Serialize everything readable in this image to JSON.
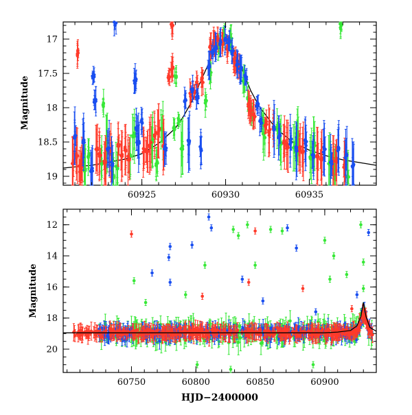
{
  "chart_data": [
    {
      "type": "scatter",
      "xlabel": "",
      "ylabel": "Magnitude",
      "xlim": [
        60920.3,
        60939.0
      ],
      "ylim": [
        19.13,
        16.75
      ],
      "y_inverted": true,
      "xticks": [
        60925,
        60930,
        60935
      ],
      "xtick_labels": [
        "60925",
        "60930",
        "60935"
      ],
      "yticks": [
        17,
        17.5,
        18,
        18.5,
        19
      ],
      "ytick_labels": [
        "17",
        "17.5",
        "18",
        "18.5",
        "19"
      ],
      "grid": false,
      "colors": {
        "red": "#ff3a2a",
        "green": "#38e838",
        "blue": "#1a4ff0",
        "model": "#000000"
      },
      "model_curve": {
        "x": [
          60920.3,
          60922,
          60924,
          60925,
          60926,
          60927,
          60927.5,
          60928,
          60928.5,
          60929,
          60929.5,
          60930,
          60930.5,
          60931,
          60931.5,
          60932,
          60933,
          60934,
          60935,
          60936,
          60937,
          60938,
          60939
        ],
        "y": [
          18.88,
          18.84,
          18.75,
          18.67,
          18.52,
          18.3,
          18.12,
          17.9,
          17.62,
          17.35,
          17.08,
          16.98,
          17.15,
          17.45,
          17.75,
          17.98,
          18.3,
          18.5,
          18.62,
          18.7,
          18.76,
          18.8,
          18.84
        ]
      },
      "series": [
        {
          "color": "red",
          "x": [
            60920.9,
            60921.1,
            60921.3,
            60921.4,
            60922.3,
            60922.5,
            60922.8,
            60923.1,
            60923.6,
            60923.8,
            60924.0,
            60924.2,
            60925.1,
            60925.3,
            60925.5,
            60925.8,
            60926.0,
            60926.3,
            60926.6,
            60926.8,
            60927.9,
            60928.1,
            60928.3,
            60928.6,
            60929.1,
            60929.3,
            60929.5,
            60929.8,
            60930.1,
            60930.5,
            60930.6,
            60930.8,
            60931.4,
            60931.5,
            60931.7,
            60932.4,
            60932.6,
            60932.8,
            60933.5,
            60933.7,
            60934.4,
            60934.6,
            60935.5,
            60935.7,
            60936.4,
            60936.6,
            60937.1,
            60921.2,
            60926.8
          ],
          "y": [
            18.8,
            18.7,
            18.9,
            18.85,
            18.6,
            18.7,
            18.8,
            18.65,
            18.55,
            18.7,
            18.6,
            18.75,
            18.6,
            18.65,
            18.55,
            18.4,
            18.35,
            18.55,
            17.55,
            17.45,
            17.8,
            17.75,
            17.65,
            17.6,
            17.1,
            17.05,
            17.0,
            17.05,
            17.15,
            17.3,
            17.35,
            17.4,
            17.95,
            18.05,
            18.1,
            18.25,
            18.35,
            18.3,
            18.5,
            18.55,
            18.6,
            18.65,
            18.7,
            18.75,
            18.8,
            18.75,
            18.85,
            17.2,
            16.8
          ]
        },
        {
          "color": "green",
          "x": [
            60921.6,
            60921.8,
            60922.6,
            60922.9,
            60923.3,
            60923.5,
            60924.3,
            60924.5,
            60925.6,
            60925.9,
            60926.2,
            60926.9,
            60927.2,
            60927.4,
            60928.8,
            60929.1,
            60929.6,
            60929.9,
            60930.3,
            60931.1,
            60931.3,
            60931.6,
            60932.2,
            60932.3,
            60933.1,
            60933.3,
            60934.1,
            60934.3,
            60935.1,
            60935.3,
            60936.2,
            60936.5,
            60937.3,
            60922.7,
            60927.0,
            60936.9
          ],
          "y": [
            18.9,
            18.7,
            18.8,
            18.5,
            19.0,
            18.9,
            18.7,
            18.4,
            18.5,
            18.8,
            18.3,
            18.3,
            18.2,
            18.6,
            17.9,
            17.5,
            17.1,
            16.95,
            17.0,
            17.6,
            17.85,
            18.1,
            18.2,
            18.4,
            18.3,
            18.5,
            18.6,
            18.4,
            18.7,
            18.55,
            18.8,
            18.9,
            19.0,
            17.95,
            17.55,
            16.8
          ]
        },
        {
          "color": "blue",
          "x": [
            60921.0,
            60921.5,
            60922.0,
            60922.2,
            60923.0,
            60923.2,
            60924.6,
            60924.8,
            60925.0,
            60926.4,
            60927.6,
            60927.8,
            60928.0,
            60928.3,
            60928.5,
            60929.0,
            60929.2,
            60929.4,
            60929.7,
            60930.0,
            60930.2,
            60930.4,
            60930.7,
            60930.9,
            60931.2,
            60931.9,
            60932.1,
            60932.9,
            60933.2,
            60933.9,
            60934.2,
            60934.8,
            60935.2,
            60935.9,
            60936.3,
            60936.7,
            60937.2,
            60937.6,
            60922.1,
            60923.4,
            60924.7
          ],
          "y": [
            18.4,
            18.5,
            18.9,
            17.9,
            18.6,
            18.8,
            17.6,
            18.5,
            18.2,
            18.6,
            17.9,
            18.5,
            17.75,
            17.85,
            18.6,
            17.4,
            17.2,
            17.15,
            17.05,
            17.0,
            17.05,
            17.2,
            17.35,
            17.45,
            17.55,
            17.95,
            18.2,
            18.3,
            18.4,
            18.5,
            18.6,
            18.5,
            18.7,
            18.6,
            18.8,
            18.6,
            18.7,
            18.85,
            17.55,
            16.75,
            18.3
          ]
        }
      ]
    },
    {
      "type": "scatter",
      "xlabel": "HJD−2400000",
      "ylabel": "Magnitude",
      "xlim": [
        60697,
        60940
      ],
      "ylim": [
        21.5,
        11.0
      ],
      "y_inverted": true,
      "xticks": [
        60750,
        60800,
        60850,
        60900
      ],
      "xtick_labels": [
        "60750",
        "60800",
        "60850",
        "60900"
      ],
      "yticks": [
        12,
        14,
        16,
        18,
        20
      ],
      "ytick_labels": [
        "12",
        "14",
        "16",
        "18",
        "20"
      ],
      "grid": false,
      "colors": {
        "red": "#ff3a2a",
        "green": "#38e838",
        "blue": "#1a4ff0",
        "model": "#000000"
      },
      "band": {
        "x_start": 60705,
        "x_end": 60937,
        "center": 18.95,
        "spread": 0.45
      },
      "outliers": {
        "blue": [
          [
            60780,
            13.4
          ],
          [
            60779,
            14.1
          ],
          [
            60797,
            13.3
          ],
          [
            60810,
            11.5
          ],
          [
            60812,
            12.2
          ],
          [
            60780,
            15.7
          ],
          [
            60766,
            15.1
          ],
          [
            60878,
            13.5
          ],
          [
            60871,
            12.2
          ],
          [
            60925,
            16.5
          ],
          [
            60934,
            12.5
          ],
          [
            60836,
            15.5
          ],
          [
            60852,
            16.9
          ],
          [
            60893,
            17.6
          ]
        ],
        "red": [
          [
            60750,
            12.6
          ],
          [
            60846,
            12.4
          ],
          [
            60841,
            15.7
          ],
          [
            60805,
            16.6
          ],
          [
            60883,
            16.1
          ],
          [
            60921,
            17.4
          ]
        ],
        "green": [
          [
            60833,
            12.7
          ],
          [
            60829,
            12.3
          ],
          [
            60840,
            12.0
          ],
          [
            60858,
            12.3
          ],
          [
            60867,
            12.4
          ],
          [
            60900,
            13.0
          ],
          [
            60907,
            14.0
          ],
          [
            60928,
            12.0
          ],
          [
            60930,
            14.4
          ],
          [
            60752,
            15.6
          ],
          [
            60807,
            14.6
          ],
          [
            60846,
            14.6
          ],
          [
            60904,
            15.5
          ],
          [
            60917,
            15.2
          ],
          [
            60930,
            16.1
          ],
          [
            60792,
            16.5
          ],
          [
            60761,
            17.0
          ],
          [
            60891,
            21.0
          ],
          [
            60827,
            21.3
          ],
          [
            60801,
            21.0
          ]
        ]
      },
      "model_curve": {
        "x": [
          60697,
          60900,
          60910,
          60920,
          60925,
          60928,
          60930,
          60932,
          60935,
          60940
        ],
        "y": [
          18.95,
          18.95,
          18.9,
          18.8,
          18.5,
          17.9,
          17.0,
          17.9,
          18.6,
          18.85
        ]
      }
    }
  ]
}
